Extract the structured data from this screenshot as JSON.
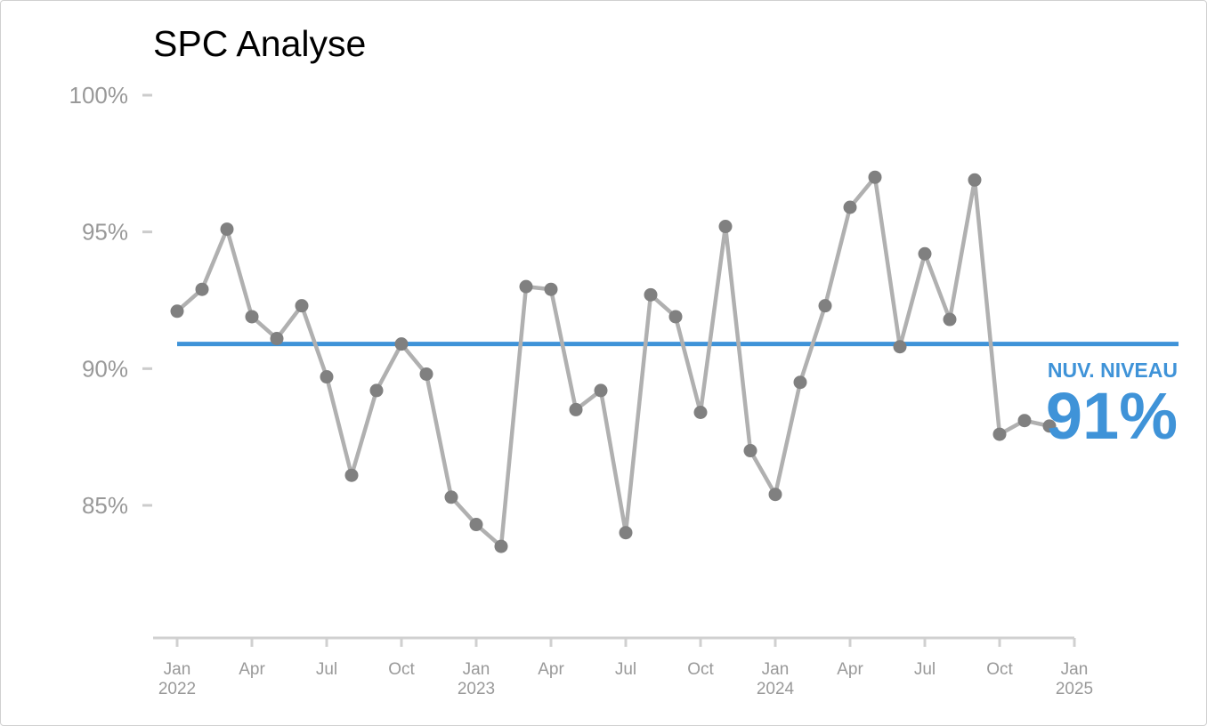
{
  "chart_data": {
    "type": "line",
    "title": "SPC Analyse",
    "xlabel": "",
    "ylabel": "",
    "ylim": [
      80,
      100
    ],
    "y_ticks": [
      {
        "value": 100,
        "label": "100%"
      },
      {
        "value": 95,
        "label": "95%"
      },
      {
        "value": 90,
        "label": "90%"
      },
      {
        "value": 85,
        "label": "85%"
      }
    ],
    "x_ticks": [
      {
        "date": "2022-01",
        "line1": "Jan",
        "line2": "2022"
      },
      {
        "date": "2022-04",
        "line1": "Apr",
        "line2": ""
      },
      {
        "date": "2022-07",
        "line1": "Jul",
        "line2": ""
      },
      {
        "date": "2022-10",
        "line1": "Oct",
        "line2": ""
      },
      {
        "date": "2023-01",
        "line1": "Jan",
        "line2": "2023"
      },
      {
        "date": "2023-04",
        "line1": "Apr",
        "line2": ""
      },
      {
        "date": "2023-07",
        "line1": "Jul",
        "line2": ""
      },
      {
        "date": "2023-10",
        "line1": "Oct",
        "line2": ""
      },
      {
        "date": "2024-01",
        "line1": "Jan",
        "line2": "2024"
      },
      {
        "date": "2024-04",
        "line1": "Apr",
        "line2": ""
      },
      {
        "date": "2024-07",
        "line1": "Jul",
        "line2": ""
      },
      {
        "date": "2024-10",
        "line1": "Oct",
        "line2": ""
      },
      {
        "date": "2025-01",
        "line1": "Jan",
        "line2": "2025"
      }
    ],
    "x_range": [
      "2021-12",
      "2025-01"
    ],
    "series": [
      {
        "color": "#b0b0b0",
        "marker_color": "#808080",
        "points": [
          {
            "x": "2022-01",
            "y": 92.1
          },
          {
            "x": "2022-02",
            "y": 92.9
          },
          {
            "x": "2022-03",
            "y": 95.1
          },
          {
            "x": "2022-04",
            "y": 91.9
          },
          {
            "x": "2022-05",
            "y": 91.1
          },
          {
            "x": "2022-06",
            "y": 92.3
          },
          {
            "x": "2022-07",
            "y": 89.7
          },
          {
            "x": "2022-08",
            "y": 86.1
          },
          {
            "x": "2022-09",
            "y": 89.2
          },
          {
            "x": "2022-10",
            "y": 90.9
          },
          {
            "x": "2022-11",
            "y": 89.8
          },
          {
            "x": "2022-12",
            "y": 85.3
          },
          {
            "x": "2023-01",
            "y": 84.3
          },
          {
            "x": "2023-02",
            "y": 83.5
          },
          {
            "x": "2023-03",
            "y": 93.0
          },
          {
            "x": "2023-04",
            "y": 92.9
          },
          {
            "x": "2023-05",
            "y": 88.5
          },
          {
            "x": "2023-06",
            "y": 89.2
          },
          {
            "x": "2023-07",
            "y": 84.0
          },
          {
            "x": "2023-08",
            "y": 92.7
          },
          {
            "x": "2023-09",
            "y": 91.9
          },
          {
            "x": "2023-10",
            "y": 88.4
          },
          {
            "x": "2023-11",
            "y": 95.2
          },
          {
            "x": "2023-12",
            "y": 87.0
          },
          {
            "x": "2024-01",
            "y": 85.4
          },
          {
            "x": "2024-02",
            "y": 89.5
          },
          {
            "x": "2024-03",
            "y": 92.3
          },
          {
            "x": "2024-04",
            "y": 95.9
          },
          {
            "x": "2024-05",
            "y": 97.0
          },
          {
            "x": "2024-06",
            "y": 90.8
          },
          {
            "x": "2024-07",
            "y": 94.2
          },
          {
            "x": "2024-08",
            "y": 91.8
          },
          {
            "x": "2024-09",
            "y": 96.9
          },
          {
            "x": "2024-10",
            "y": 87.6
          },
          {
            "x": "2024-11",
            "y": 88.1
          },
          {
            "x": "2024-12",
            "y": 87.9
          }
        ]
      }
    ],
    "reference_line": {
      "y": 90.9,
      "x_start": "2022-01",
      "color": "#3f93d8",
      "tag": "NUV. NIVEAU",
      "value_label": "91%"
    },
    "grid": false,
    "legend": "none"
  }
}
